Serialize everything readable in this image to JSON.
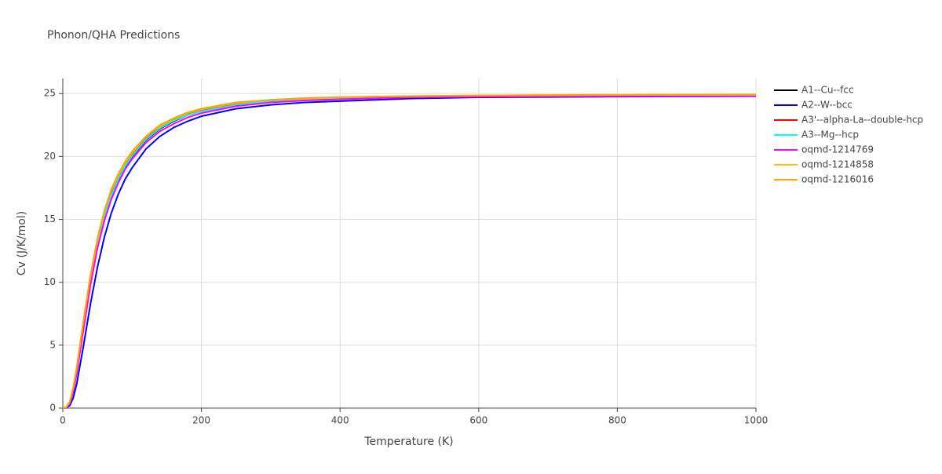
{
  "chart_data": {
    "type": "line",
    "title": "Phonon/QHA Predictions",
    "x_label": "Temperature (K)",
    "y_label": "Cv (J/K/mol)",
    "x": [
      0,
      5,
      10,
      15,
      20,
      30,
      40,
      50,
      60,
      70,
      80,
      90,
      100,
      120,
      140,
      160,
      180,
      200,
      250,
      300,
      350,
      400,
      500,
      600,
      700,
      800,
      900,
      1000
    ],
    "xlim": [
      0,
      1000
    ],
    "xticks": [
      0,
      200,
      400,
      600,
      800,
      1000
    ],
    "ylim": [
      0,
      26.2
    ],
    "yticks": [
      0,
      5,
      10,
      15,
      20,
      25
    ],
    "grid": true,
    "series": [
      {
        "name": "A1--Cu--fcc",
        "color": "#000000",
        "values": [
          0,
          0.05,
          0.4,
          1.4,
          2.9,
          6.5,
          10.0,
          12.9,
          15.1,
          16.8,
          18.1,
          19.2,
          20.0,
          21.3,
          22.2,
          22.8,
          23.3,
          23.6,
          24.1,
          24.35,
          24.5,
          24.6,
          24.7,
          24.75,
          24.78,
          24.8,
          24.81,
          24.82
        ]
      },
      {
        "name": "A2--W--bcc",
        "color": "#0000ff",
        "values": [
          0,
          0.02,
          0.2,
          0.8,
          1.9,
          5.0,
          8.3,
          11.2,
          13.6,
          15.5,
          17.0,
          18.2,
          19.1,
          20.6,
          21.6,
          22.3,
          22.8,
          23.2,
          23.8,
          24.1,
          24.3,
          24.4,
          24.6,
          24.7,
          24.73,
          24.76,
          24.78,
          24.8
        ]
      },
      {
        "name": "A3'--alpha-La--double-hcp",
        "color": "#ff0000",
        "values": [
          0,
          0.06,
          0.45,
          1.5,
          3.0,
          6.7,
          10.2,
          13.1,
          15.3,
          17.0,
          18.3,
          19.3,
          20.1,
          21.4,
          22.3,
          22.9,
          23.35,
          23.65,
          24.15,
          24.4,
          24.55,
          24.65,
          24.75,
          24.8,
          24.83,
          24.85,
          24.86,
          24.87
        ]
      },
      {
        "name": "A3--Mg--hcp",
        "color": "#00ffff",
        "values": [
          0,
          0.05,
          0.4,
          1.4,
          2.9,
          6.6,
          10.1,
          13.0,
          15.2,
          16.9,
          18.2,
          19.25,
          20.05,
          21.35,
          22.25,
          22.85,
          23.3,
          23.6,
          24.1,
          24.4,
          24.55,
          24.65,
          24.75,
          24.8,
          24.83,
          24.85,
          24.86,
          24.87
        ]
      },
      {
        "name": "oqmd-1214769",
        "color": "#ff00ff",
        "values": [
          0,
          0.04,
          0.35,
          1.3,
          2.7,
          6.3,
          9.8,
          12.7,
          14.9,
          16.6,
          17.9,
          19.0,
          19.8,
          21.1,
          22.0,
          22.6,
          23.1,
          23.45,
          24.0,
          24.3,
          24.45,
          24.55,
          24.7,
          24.75,
          24.78,
          24.8,
          24.82,
          24.83
        ]
      },
      {
        "name": "oqmd-1214858",
        "color": "#ffc000",
        "values": [
          0,
          0.07,
          0.5,
          1.6,
          3.2,
          7.0,
          10.5,
          13.4,
          15.6,
          17.3,
          18.5,
          19.5,
          20.3,
          21.6,
          22.4,
          23.0,
          23.45,
          23.75,
          24.25,
          24.5,
          24.6,
          24.7,
          24.8,
          24.85,
          24.87,
          24.88,
          24.89,
          24.9
        ]
      },
      {
        "name": "oqmd-1216016",
        "color": "#ffa500",
        "values": [
          0,
          0.07,
          0.5,
          1.6,
          3.2,
          7.0,
          10.6,
          13.5,
          15.7,
          17.4,
          18.6,
          19.6,
          20.4,
          21.6,
          22.5,
          23.05,
          23.5,
          23.8,
          24.3,
          24.5,
          24.65,
          24.72,
          24.8,
          24.85,
          24.88,
          24.9,
          24.91,
          24.92
        ]
      }
    ]
  }
}
